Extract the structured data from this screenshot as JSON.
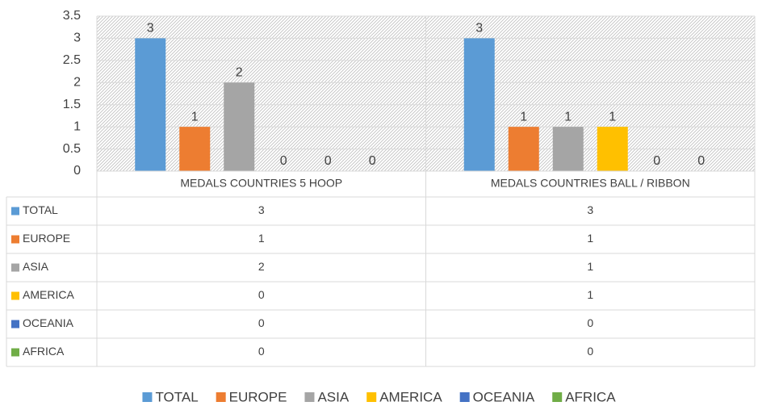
{
  "chart_data": {
    "type": "bar",
    "categories": [
      "MEDALS COUNTRIES 5 HOOP",
      "MEDALS COUNTRIES BALL / RIBBON"
    ],
    "series": [
      {
        "name": "TOTAL",
        "color": "#5b9bd5",
        "values": [
          3,
          3
        ]
      },
      {
        "name": "EUROPE",
        "color": "#ed7d31",
        "values": [
          1,
          1
        ]
      },
      {
        "name": "ASIA",
        "color": "#a5a5a5",
        "values": [
          2,
          1
        ]
      },
      {
        "name": "AMERICA",
        "color": "#ffc000",
        "values": [
          0,
          1
        ]
      },
      {
        "name": "OCEANIA",
        "color": "#4472c4",
        "values": [
          0,
          0
        ]
      },
      {
        "name": "AFRICA",
        "color": "#70ad47",
        "values": [
          0,
          0
        ]
      }
    ],
    "ylim": [
      0,
      3.5
    ],
    "yticks": [
      0,
      0.5,
      1,
      1.5,
      2,
      2.5,
      3,
      3.5
    ],
    "grid": true
  }
}
